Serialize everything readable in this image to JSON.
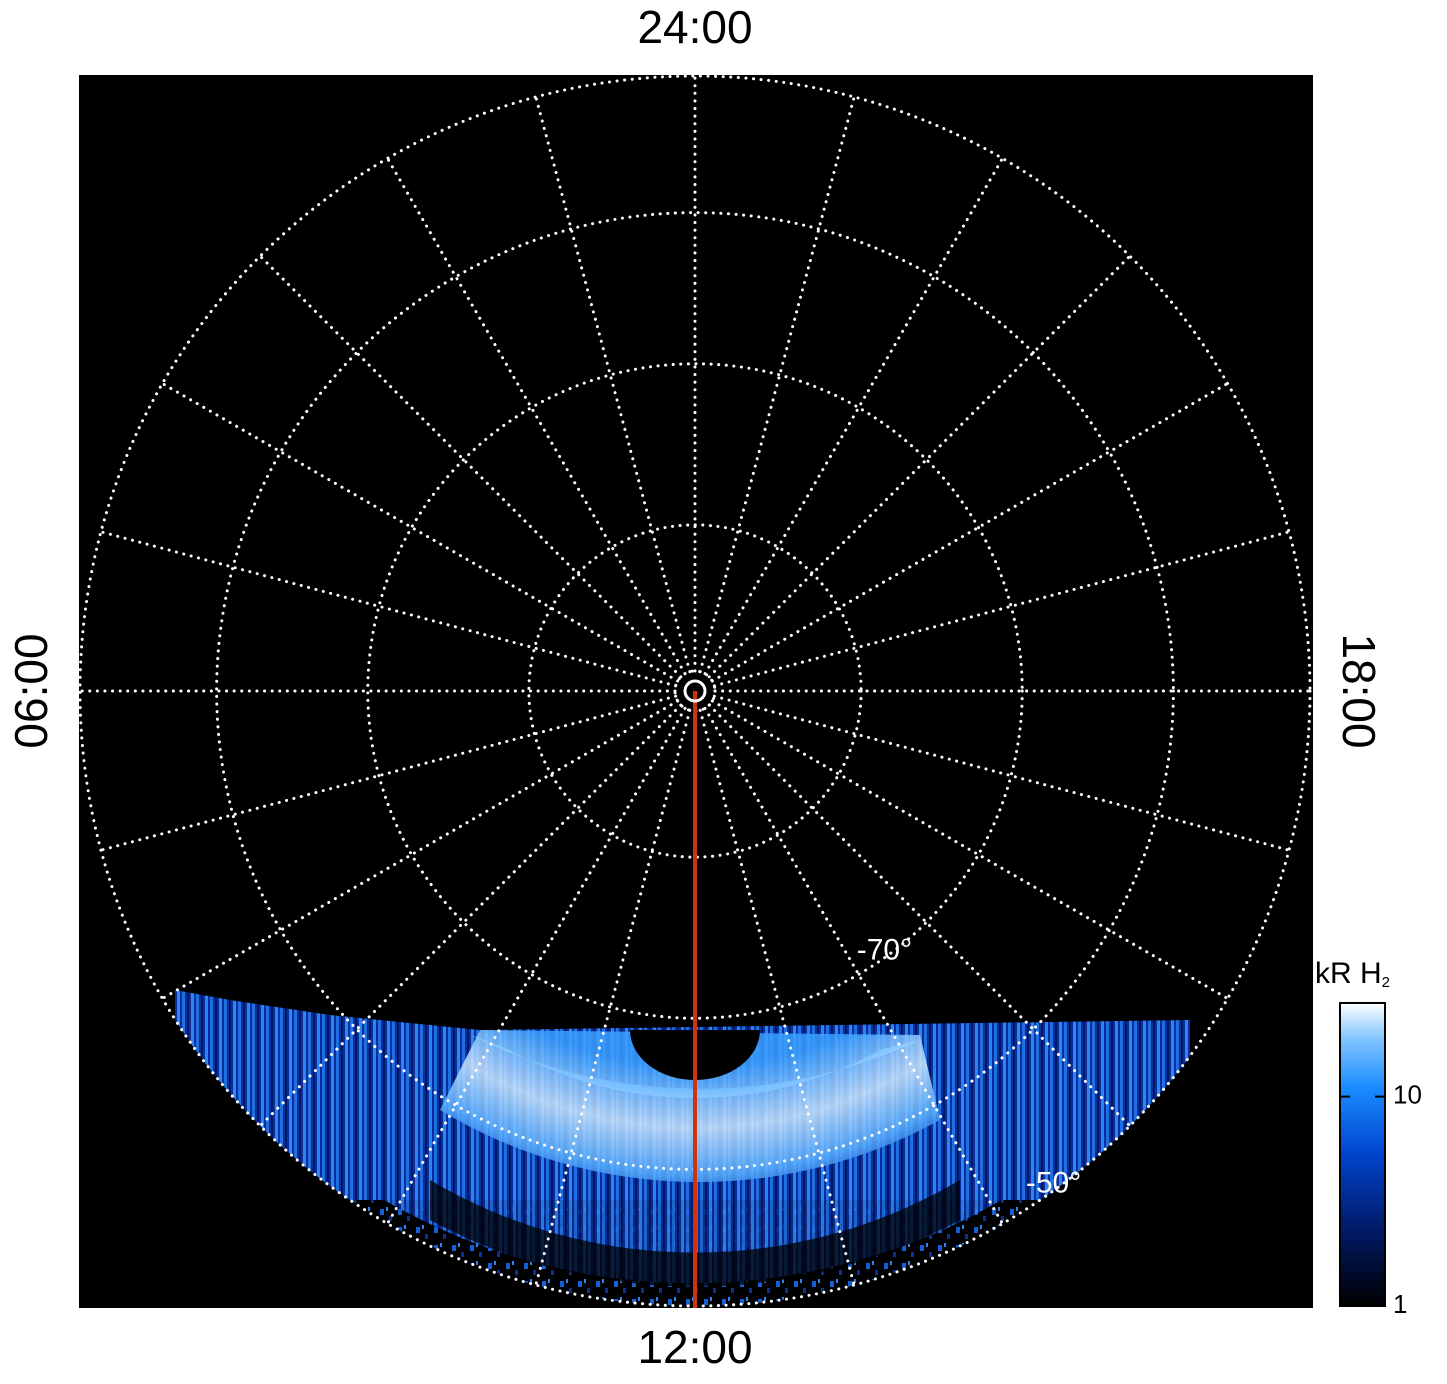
{
  "chart_data": {
    "type": "polar-image",
    "lt_labels": [
      {
        "value": 24,
        "label": "24:00"
      },
      {
        "value": 6,
        "label": "06:00"
      },
      {
        "value": 12,
        "label": "12:00"
      },
      {
        "value": 18,
        "label": "18:00"
      }
    ],
    "lt_grid": [
      0,
      1,
      2,
      3,
      4,
      5,
      6,
      7,
      8,
      9,
      10,
      11,
      12,
      13,
      14,
      15,
      16,
      17,
      18,
      19,
      20,
      21,
      22,
      23
    ],
    "lat_lim": [
      -90,
      -50
    ],
    "lat_grid": [
      -80,
      -70,
      -60,
      -50
    ],
    "lat_labels": [
      {
        "value": -70,
        "label": "-70°"
      },
      {
        "value": -50,
        "label": "-50°"
      }
    ],
    "colorbar": {
      "label": "kR H",
      "label_subscript": "2",
      "log_scale": true,
      "lim": [
        1,
        28
      ],
      "ticks": [
        1,
        10
      ]
    }
  }
}
